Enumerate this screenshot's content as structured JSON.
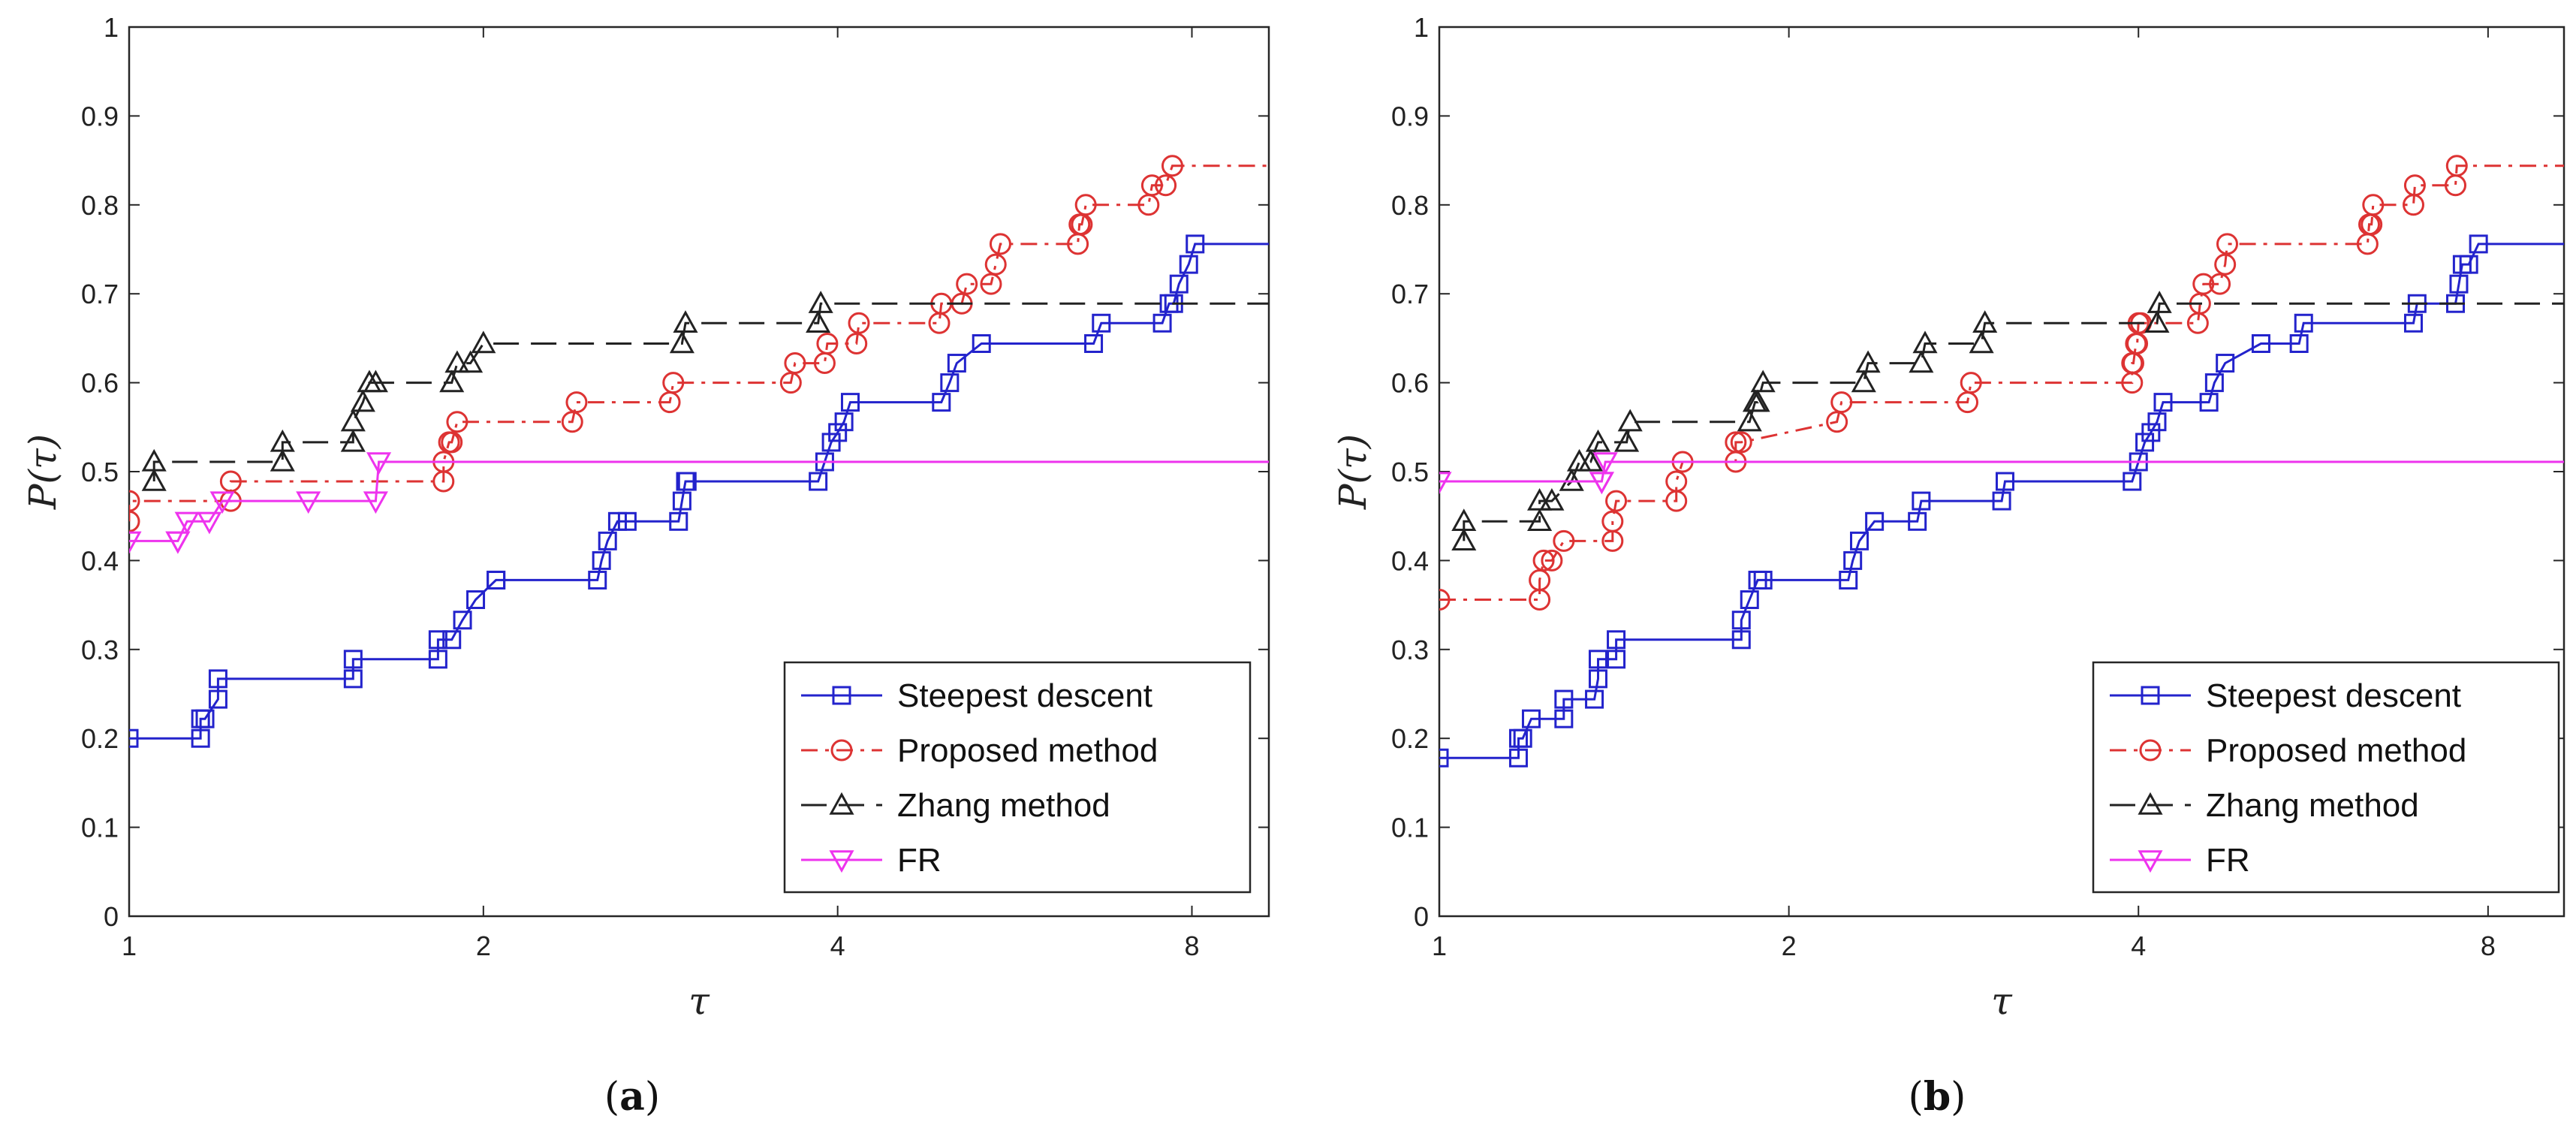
{
  "chart_data": [
    {
      "type": "line",
      "panel_label": "a",
      "xlabel": "τ",
      "ylabel": "P(τ)",
      "xscale": "log2",
      "xlim": [
        1,
        9.3
      ],
      "ylim": [
        0,
        1
      ],
      "xticks": [
        1,
        2,
        4,
        8
      ],
      "xtick_labels": [
        "1",
        "2",
        "4",
        "8"
      ],
      "yticks": [
        0,
        0.1,
        0.2,
        0.3,
        0.4,
        0.5,
        0.6,
        0.7,
        0.8,
        0.9,
        1
      ],
      "ytick_labels": [
        "0",
        "0.1",
        "0.2",
        "0.3",
        "0.4",
        "0.5",
        "0.6",
        "0.7",
        "0.8",
        "0.9",
        "1"
      ],
      "legend_position": "bottom-right",
      "series": [
        {
          "name": "Steepest descent",
          "color": "#2323cc",
          "dash": "solid",
          "marker": "square",
          "x": [
            1,
            1.15,
            1.15,
            1.16,
            1.19,
            1.19,
            1.55,
            1.55,
            1.83,
            1.83,
            1.88,
            1.92,
            1.97,
            2.05,
            2.05,
            2.5,
            2.52,
            2.55,
            2.6,
            2.65,
            2.93,
            2.95,
            2.97,
            2.98,
            3.85,
            3.9,
            3.95,
            4.0,
            4.05,
            4.1,
            4.9,
            4.98,
            5.05,
            5.3,
            6.6,
            6.7,
            7.55,
            7.65,
            7.72,
            7.8,
            7.95,
            8.05,
            9.3
          ],
          "y": [
            0.2,
            0.2,
            0.222,
            0.222,
            0.244,
            0.267,
            0.267,
            0.289,
            0.289,
            0.311,
            0.311,
            0.333,
            0.356,
            0.378,
            0.378,
            0.378,
            0.4,
            0.422,
            0.444,
            0.444,
            0.444,
            0.467,
            0.489,
            0.489,
            0.489,
            0.511,
            0.533,
            0.544,
            0.556,
            0.578,
            0.578,
            0.6,
            0.622,
            0.644,
            0.644,
            0.667,
            0.667,
            0.689,
            0.689,
            0.711,
            0.733,
            0.756,
            0.756
          ]
        },
        {
          "name": "Proposed method",
          "color": "#dd3333",
          "dash": "dashdot",
          "marker": "circle",
          "x": [
            1,
            1,
            1.22,
            1.22,
            1.85,
            1.85,
            1.87,
            1.88,
            1.9,
            2.38,
            2.4,
            2.88,
            2.9,
            3.65,
            3.68,
            3.9,
            3.92,
            4.15,
            4.17,
            4.88,
            4.9,
            5.1,
            5.15,
            5.4,
            5.45,
            5.5,
            6.4,
            6.42,
            6.45,
            6.5,
            7.35,
            7.4,
            7.6,
            7.7,
            9.3
          ],
          "y": [
            0.444,
            0.467,
            0.467,
            0.489,
            0.489,
            0.511,
            0.533,
            0.533,
            0.556,
            0.556,
            0.578,
            0.578,
            0.6,
            0.6,
            0.622,
            0.622,
            0.644,
            0.644,
            0.667,
            0.667,
            0.689,
            0.689,
            0.711,
            0.711,
            0.733,
            0.756,
            0.756,
            0.778,
            0.778,
            0.8,
            0.8,
            0.822,
            0.822,
            0.844,
            0.844
          ]
        },
        {
          "name": "Zhang method",
          "color": "#222222",
          "dash": "dashed",
          "marker": "triangle-up",
          "x": [
            1.05,
            1.05,
            1.35,
            1.35,
            1.55,
            1.55,
            1.58,
            1.6,
            1.62,
            1.88,
            1.9,
            1.95,
            2.0,
            2.95,
            2.97,
            3.85,
            3.87,
            9.3
          ],
          "y": [
            0.489,
            0.511,
            0.511,
            0.533,
            0.533,
            0.556,
            0.578,
            0.6,
            0.6,
            0.6,
            0.622,
            0.622,
            0.644,
            0.644,
            0.667,
            0.667,
            0.689,
            0.689
          ]
        },
        {
          "name": "FR",
          "color": "#ee33ee",
          "dash": "solid",
          "marker": "triangle-down",
          "x": [
            1,
            1.1,
            1.1,
            1.12,
            1.17,
            1.2,
            1.42,
            1.62,
            1.63,
            9.3
          ],
          "y": [
            0.422,
            0.422,
            0.422,
            0.444,
            0.444,
            0.467,
            0.467,
            0.467,
            0.511,
            0.511
          ]
        }
      ]
    },
    {
      "type": "line",
      "panel_label": "b",
      "xlabel": "τ",
      "ylabel": "P(τ)",
      "xscale": "log2",
      "xlim": [
        1,
        9.3
      ],
      "ylim": [
        0,
        1
      ],
      "xticks": [
        1,
        2,
        4,
        8
      ],
      "xtick_labels": [
        "1",
        "2",
        "4",
        "8"
      ],
      "yticks": [
        0,
        0.1,
        0.2,
        0.3,
        0.4,
        0.5,
        0.6,
        0.7,
        0.8,
        0.9,
        1
      ],
      "ytick_labels": [
        "0",
        "0.1",
        "0.2",
        "0.3",
        "0.4",
        "0.5",
        "0.6",
        "0.7",
        "0.8",
        "0.9",
        "1"
      ],
      "legend_position": "bottom-right",
      "series": [
        {
          "name": "Steepest descent",
          "color": "#2323cc",
          "dash": "solid",
          "marker": "square",
          "x": [
            1,
            1.17,
            1.17,
            1.18,
            1.2,
            1.28,
            1.28,
            1.36,
            1.37,
            1.37,
            1.42,
            1.42,
            1.82,
            1.82,
            1.85,
            1.88,
            1.9,
            2.25,
            2.27,
            2.3,
            2.37,
            2.58,
            2.6,
            3.05,
            3.07,
            3.95,
            4.0,
            4.05,
            4.1,
            4.15,
            4.2,
            4.6,
            4.65,
            4.75,
            5.1,
            5.5,
            5.55,
            6.9,
            6.95,
            7.5,
            7.55,
            7.6,
            7.7,
            7.85,
            9.3
          ],
          "y": [
            0.178,
            0.178,
            0.2,
            0.2,
            0.222,
            0.222,
            0.244,
            0.244,
            0.267,
            0.289,
            0.289,
            0.311,
            0.311,
            0.333,
            0.356,
            0.378,
            0.378,
            0.378,
            0.4,
            0.422,
            0.444,
            0.444,
            0.467,
            0.467,
            0.489,
            0.489,
            0.511,
            0.533,
            0.544,
            0.556,
            0.578,
            0.578,
            0.6,
            0.622,
            0.644,
            0.644,
            0.667,
            0.667,
            0.689,
            0.689,
            0.711,
            0.733,
            0.733,
            0.756,
            0.756
          ]
        },
        {
          "name": "Proposed method",
          "color": "#dd3333",
          "dash": "dashdot",
          "marker": "circle",
          "x": [
            1,
            1.22,
            1.22,
            1.23,
            1.25,
            1.28,
            1.41,
            1.41,
            1.42,
            1.6,
            1.6,
            1.62,
            1.8,
            1.8,
            1.82,
            2.2,
            2.22,
            2.85,
            2.87,
            3.95,
            3.95,
            3.96,
            3.98,
            3.99,
            4.0,
            4.02,
            4.5,
            4.52,
            4.55,
            4.7,
            4.75,
            4.77,
            6.3,
            6.32,
            6.35,
            6.37,
            6.9,
            6.92,
            7.5,
            7.52,
            9.3
          ],
          "y": [
            0.356,
            0.356,
            0.378,
            0.4,
            0.4,
            0.422,
            0.422,
            0.444,
            0.467,
            0.467,
            0.489,
            0.511,
            0.511,
            0.533,
            0.533,
            0.556,
            0.578,
            0.578,
            0.6,
            0.6,
            0.622,
            0.622,
            0.644,
            0.644,
            0.667,
            0.667,
            0.667,
            0.689,
            0.711,
            0.711,
            0.733,
            0.756,
            0.756,
            0.778,
            0.778,
            0.8,
            0.8,
            0.822,
            0.822,
            0.844,
            0.844
          ]
        },
        {
          "name": "Zhang method",
          "color": "#222222",
          "dash": "dashed",
          "marker": "triangle-up",
          "x": [
            1.05,
            1.05,
            1.22,
            1.22,
            1.25,
            1.3,
            1.32,
            1.35,
            1.37,
            1.45,
            1.46,
            1.85,
            1.87,
            1.88,
            1.9,
            2.32,
            2.34,
            2.6,
            2.62,
            2.93,
            2.95,
            4.15,
            4.17,
            9.3
          ],
          "y": [
            0.422,
            0.444,
            0.444,
            0.467,
            0.467,
            0.489,
            0.511,
            0.511,
            0.533,
            0.533,
            0.556,
            0.556,
            0.578,
            0.578,
            0.6,
            0.6,
            0.622,
            0.622,
            0.644,
            0.644,
            0.667,
            0.667,
            0.689,
            0.689
          ]
        },
        {
          "name": "FR",
          "color": "#ee33ee",
          "dash": "solid",
          "marker": "triangle-down",
          "x": [
            1,
            1.38,
            1.38,
            1.39,
            9.3
          ],
          "y": [
            0.489,
            0.489,
            0.489,
            0.511,
            0.511
          ]
        }
      ]
    }
  ],
  "captions": [
    "a",
    "b"
  ]
}
